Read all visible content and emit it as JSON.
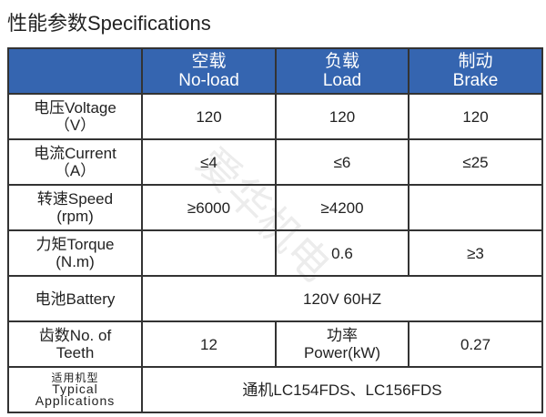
{
  "title": "性能参数Specifications",
  "watermark": "爱华机电",
  "header": {
    "col1_cn": "空载",
    "col1_en": "No-load",
    "col2_cn": "负载",
    "col2_en": "Load",
    "col3_cn": "制动",
    "col3_en": "Brake"
  },
  "rows": [
    {
      "label1": "电压Voltage",
      "label2": "（V）",
      "values": [
        "120",
        "120",
        "120"
      ]
    },
    {
      "label1": "电流Current",
      "label2": "（A）",
      "values": [
        "≤4",
        "≤6",
        "≤25"
      ]
    },
    {
      "label1": "转速Speed",
      "label2": "(rpm)",
      "values": [
        "≥6000",
        "≥4200",
        ""
      ]
    },
    {
      "label1": "力矩Torque",
      "label2": "(N.m)",
      "values": [
        "",
        "0.6",
        "≥3"
      ]
    }
  ],
  "battery": {
    "label": "电池Battery",
    "value": "120V 60HZ"
  },
  "teeth": {
    "label1": "齿数No. of",
    "label2": "Teeth",
    "value": "12",
    "power_label1": "功率",
    "power_label2": "Power(kW)",
    "power_value": "0.27"
  },
  "applications": {
    "label1": "适用机型",
    "label2": "Typical",
    "label3": "Applications",
    "value": "通机LC154FDS、LC156FDS"
  },
  "colors": {
    "header_bg": "#3565b0"
  }
}
